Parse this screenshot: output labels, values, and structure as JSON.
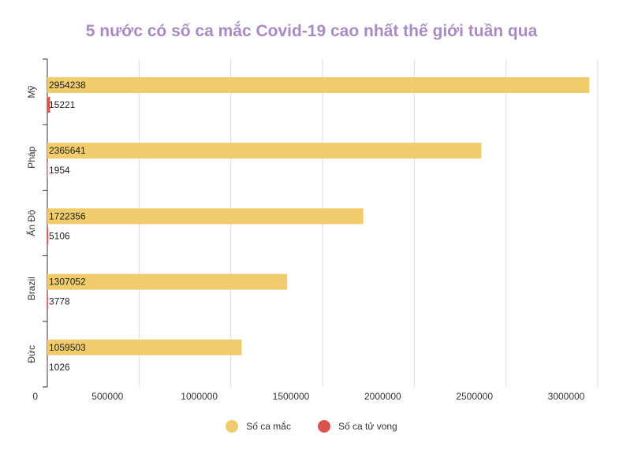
{
  "chart_data": {
    "type": "bar",
    "orientation": "horizontal",
    "title": "5 nước có số ca mắc Covid-19 cao nhất thế giới tuần qua",
    "categories": [
      "Mỹ",
      "Pháp",
      "Ấn Độ",
      "Brazil",
      "Đức"
    ],
    "series": [
      {
        "name": "Số ca mắc",
        "color": "#f0cc6c",
        "values": [
          2954238,
          2365641,
          1722356,
          1307052,
          1059503
        ]
      },
      {
        "name": "Số ca tử vong",
        "color": "#d9534f",
        "values": [
          15221,
          1954,
          5106,
          3778,
          1026
        ]
      }
    ],
    "xlim": [
      0,
      3000000
    ],
    "xticks": [
      0,
      500000,
      1000000,
      1500000,
      2000000,
      2500000,
      3000000
    ],
    "grid": true,
    "legend_position": "bottom-center"
  }
}
